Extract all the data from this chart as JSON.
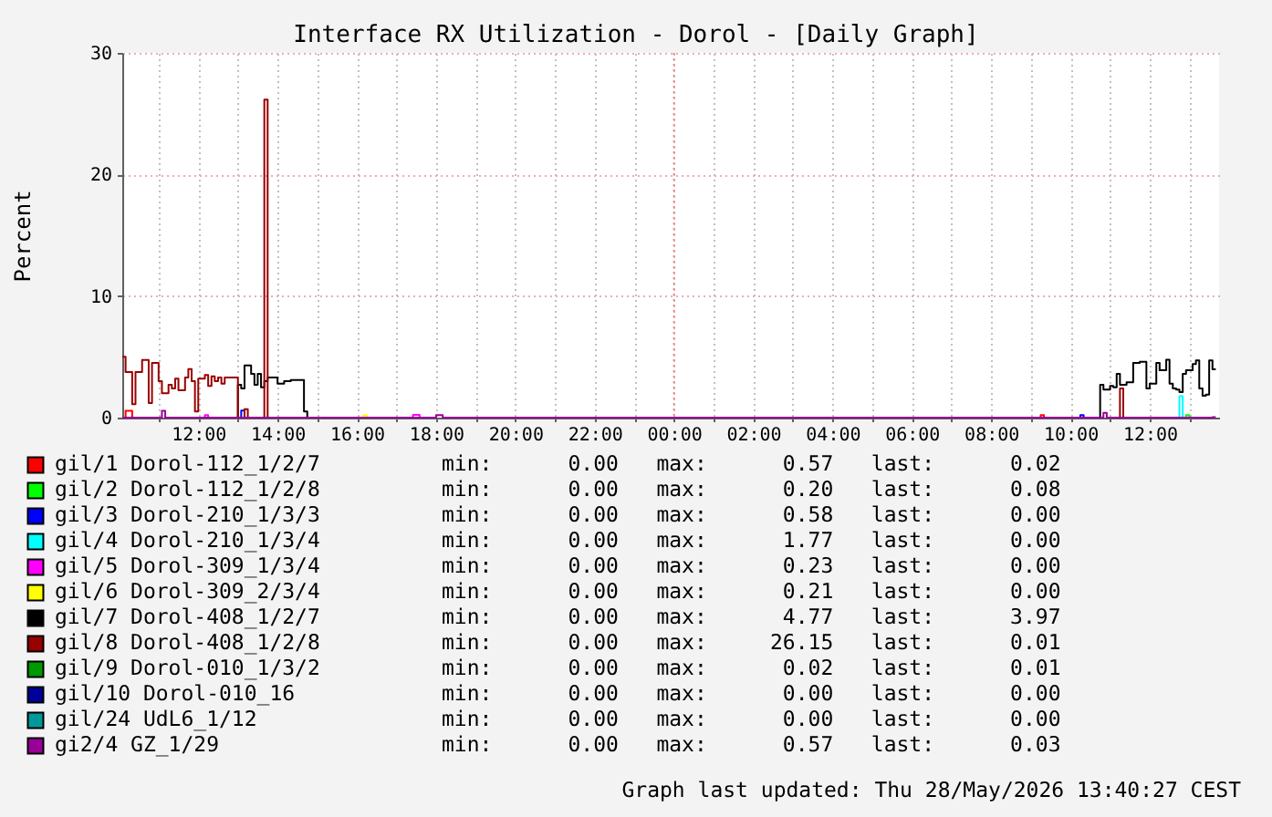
{
  "chart_data": {
    "type": "step",
    "title": "Interface RX Utilization - Dorol - [Daily Graph]",
    "ylabel": "Percent",
    "xlim": [
      "2026-05-27T10:05",
      "2026-05-28T13:45"
    ],
    "xticks": [
      {
        "value": "2026-05-27T11:00",
        "label": null
      },
      {
        "value": "2026-05-27T12:00",
        "label": "12:00"
      },
      {
        "value": "2026-05-27T13:00",
        "label": null
      },
      {
        "value": "2026-05-27T14:00",
        "label": "14:00"
      },
      {
        "value": "2026-05-27T15:00",
        "label": null
      },
      {
        "value": "2026-05-27T16:00",
        "label": "16:00"
      },
      {
        "value": "2026-05-27T17:00",
        "label": null
      },
      {
        "value": "2026-05-27T18:00",
        "label": "18:00"
      },
      {
        "value": "2026-05-27T19:00",
        "label": null
      },
      {
        "value": "2026-05-27T20:00",
        "label": "20:00"
      },
      {
        "value": "2026-05-27T21:00",
        "label": null
      },
      {
        "value": "2026-05-27T22:00",
        "label": "22:00"
      },
      {
        "value": "2026-05-27T23:00",
        "label": null
      },
      {
        "value": "2026-05-28T00:00",
        "label": "00:00"
      },
      {
        "value": "2026-05-28T01:00",
        "label": null
      },
      {
        "value": "2026-05-28T02:00",
        "label": "02:00"
      },
      {
        "value": "2026-05-28T03:00",
        "label": null
      },
      {
        "value": "2026-05-28T04:00",
        "label": "04:00"
      },
      {
        "value": "2026-05-28T05:00",
        "label": null
      },
      {
        "value": "2026-05-28T06:00",
        "label": "06:00"
      },
      {
        "value": "2026-05-28T07:00",
        "label": null
      },
      {
        "value": "2026-05-28T08:00",
        "label": "08:00"
      },
      {
        "value": "2026-05-28T09:00",
        "label": null
      },
      {
        "value": "2026-05-28T10:00",
        "label": "10:00"
      },
      {
        "value": "2026-05-28T11:00",
        "label": null
      },
      {
        "value": "2026-05-28T12:00",
        "label": "12:00"
      },
      {
        "value": "2026-05-28T13:00",
        "label": null
      }
    ],
    "ylim": [
      0,
      30
    ],
    "yticks": [
      0,
      10,
      20,
      30
    ],
    "grid": true,
    "legend": "bottom",
    "ref_lines": [
      {
        "axis": "x",
        "value": "2026-05-28T00:00",
        "color": "#ff8080",
        "line_style": "dotted"
      }
    ],
    "series": [
      {
        "name": "gil/1 Dorol-112_1/2/7",
        "color": "#ff0000",
        "x": [
          "2026-05-27T10:05",
          "2026-05-27T10:10",
          "2026-05-27T10:20",
          "2026-05-27T10:25",
          "2026-05-28T09:10",
          "2026-05-28T09:15",
          "2026-05-28T09:20"
        ],
        "values": [
          0,
          0.57,
          0,
          null,
          0,
          0.2,
          0
        ]
      },
      {
        "name": "gil/2 Dorol-112_1/2/8",
        "color": "#00ff00",
        "x": [
          "2026-05-28T12:50",
          "2026-05-28T12:55",
          "2026-05-28T13:00"
        ],
        "values": [
          0,
          0.2,
          0
        ]
      },
      {
        "name": "gil/3 Dorol-210_1/3/3",
        "color": "#0000ff",
        "x": [
          "2026-05-27T13:00",
          "2026-05-27T13:05",
          "2026-05-27T13:10",
          "2026-05-27T13:15",
          "2026-05-28T10:10",
          "2026-05-28T10:15",
          "2026-05-28T10:20"
        ],
        "values": [
          0,
          0.58,
          0,
          null,
          0,
          0.2,
          0
        ]
      },
      {
        "name": "gil/4 Dorol-210_1/3/4",
        "color": "#00ffff",
        "x": [
          "2026-05-28T12:40",
          "2026-05-28T12:45",
          "2026-05-28T12:50"
        ],
        "values": [
          0,
          1.77,
          0
        ]
      },
      {
        "name": "gil/5 Dorol-309_1/3/4",
        "color": "#ff00ff",
        "x": [
          "2026-05-27T12:05",
          "2026-05-27T12:10",
          "2026-05-27T12:15",
          "2026-05-27T12:20",
          "2026-05-27T17:20",
          "2026-05-27T17:25",
          "2026-05-27T17:35"
        ],
        "values": [
          0,
          0.2,
          0,
          null,
          0,
          0.23,
          0
        ]
      },
      {
        "name": "gil/6 Dorol-309_2/3/4",
        "color": "#ffff00",
        "x": [
          "2026-05-27T16:05",
          "2026-05-27T16:10",
          "2026-05-27T16:15"
        ],
        "values": [
          0,
          0.21,
          0
        ]
      },
      {
        "name": "gil/7 Dorol-408_1/2/7",
        "color": "#000000",
        "x": [
          "2026-05-27T12:55",
          "2026-05-27T13:00",
          "2026-05-27T13:05",
          "2026-05-27T13:10",
          "2026-05-27T13:15",
          "2026-05-27T13:20",
          "2026-05-27T13:25",
          "2026-05-27T13:30",
          "2026-05-27T13:35",
          "2026-05-27T13:40",
          "2026-05-27T13:45",
          "2026-05-27T13:50",
          "2026-05-27T13:55",
          "2026-05-27T14:00",
          "2026-05-27T14:05",
          "2026-05-27T14:10",
          "2026-05-27T14:15",
          "2026-05-27T14:20",
          "2026-05-27T14:25",
          "2026-05-27T14:30",
          "2026-05-27T14:35",
          "2026-05-27T14:40",
          "2026-05-27T14:45",
          "2026-05-27T14:50",
          "2026-05-28T10:40",
          "2026-05-28T10:45",
          "2026-05-28T10:50",
          "2026-05-28T10:55",
          "2026-05-28T11:00",
          "2026-05-28T11:05",
          "2026-05-28T11:10",
          "2026-05-28T11:15",
          "2026-05-28T11:20",
          "2026-05-28T11:25",
          "2026-05-28T11:30",
          "2026-05-28T11:35",
          "2026-05-28T11:40",
          "2026-05-28T11:45",
          "2026-05-28T11:50",
          "2026-05-28T11:55",
          "2026-05-28T12:00",
          "2026-05-28T12:05",
          "2026-05-28T12:10",
          "2026-05-28T12:15",
          "2026-05-28T12:20",
          "2026-05-28T12:25",
          "2026-05-28T12:30",
          "2026-05-28T12:35",
          "2026-05-28T12:40",
          "2026-05-28T12:45",
          "2026-05-28T12:50",
          "2026-05-28T12:55",
          "2026-05-28T13:00",
          "2026-05-28T13:05",
          "2026-05-28T13:10",
          "2026-05-28T13:15",
          "2026-05-28T13:20",
          "2026-05-28T13:25",
          "2026-05-28T13:30",
          "2026-05-28T13:35",
          "2026-05-28T13:40"
        ],
        "values": [
          0,
          2.7,
          2.4,
          4.3,
          4.3,
          3.6,
          2.7,
          3.6,
          2.5,
          3.0,
          3.3,
          3.3,
          3.3,
          2.8,
          2.8,
          3.0,
          3.0,
          3.1,
          3.1,
          3.1,
          3.1,
          0.5,
          0,
          null,
          0,
          2.7,
          2.3,
          2.3,
          2.6,
          2.5,
          3.6,
          2.7,
          2.7,
          2.9,
          2.9,
          4.5,
          4.5,
          4.6,
          4.6,
          2.4,
          2.8,
          2.8,
          4.5,
          3.9,
          3.9,
          4.77,
          2.8,
          2.4,
          2.3,
          2.1,
          3.6,
          3.9,
          3.9,
          4.4,
          4.7,
          2.4,
          1.8,
          1.9,
          4.7,
          3.97,
          3.97
        ]
      },
      {
        "name": "gil/8 Dorol-408_1/2/8",
        "color": "#990000",
        "x": [
          "2026-05-27T10:05",
          "2026-05-27T10:10",
          "2026-05-27T10:15",
          "2026-05-27T10:20",
          "2026-05-27T10:25",
          "2026-05-27T10:30",
          "2026-05-27T10:35",
          "2026-05-27T10:40",
          "2026-05-27T10:45",
          "2026-05-27T10:50",
          "2026-05-27T10:55",
          "2026-05-27T11:00",
          "2026-05-27T11:05",
          "2026-05-27T11:10",
          "2026-05-27T11:15",
          "2026-05-27T11:20",
          "2026-05-27T11:25",
          "2026-05-27T11:30",
          "2026-05-27T11:35",
          "2026-05-27T11:40",
          "2026-05-27T11:45",
          "2026-05-27T11:50",
          "2026-05-27T11:55",
          "2026-05-27T12:00",
          "2026-05-27T12:05",
          "2026-05-27T12:10",
          "2026-05-27T12:15",
          "2026-05-27T12:20",
          "2026-05-27T12:25",
          "2026-05-27T12:30",
          "2026-05-27T12:35",
          "2026-05-27T12:40",
          "2026-05-27T12:45",
          "2026-05-27T12:50",
          "2026-05-27T12:55",
          "2026-05-27T13:00",
          "2026-05-27T13:05",
          "2026-05-27T13:10",
          "2026-05-27T13:15",
          "2026-05-27T13:20",
          "2026-05-27T13:35",
          "2026-05-27T13:40",
          "2026-05-27T13:45",
          "2026-05-27T13:50",
          "2026-05-28T11:10",
          "2026-05-28T11:15",
          "2026-05-28T11:20"
        ],
        "values": [
          5.0,
          3.75,
          3.75,
          1.1,
          3.75,
          3.75,
          4.75,
          4.75,
          1.2,
          4.5,
          4.5,
          3.0,
          2.0,
          2.0,
          2.7,
          2.4,
          3.2,
          2.25,
          2.25,
          3.3,
          4.0,
          3.0,
          0.5,
          3.2,
          3.2,
          3.5,
          2.6,
          3.4,
          3.0,
          3.3,
          2.8,
          3.3,
          3.3,
          3.3,
          3.3,
          0,
          0,
          0.7,
          0,
          null,
          0,
          26.15,
          0,
          null,
          0,
          2.4,
          0
        ]
      },
      {
        "name": "gil/9 Dorol-010_1/3/2",
        "color": "#009900"
      },
      {
        "name": "gil/10 Dorol-010_16",
        "color": "#000099"
      },
      {
        "name": "gil/24 UdL6_1/12",
        "color": "#009999"
      },
      {
        "name": "gi2/4 GZ_1/29",
        "color": "#990099",
        "x": [
          "2026-05-27T10:05",
          "2026-05-27T11:05",
          "2026-05-27T11:10",
          "2026-05-27T18:00",
          "2026-05-27T18:10",
          "2026-05-28T10:50",
          "2026-05-28T10:55",
          "2026-05-28T13:35",
          "2026-05-28T13:40"
        ],
        "values": [
          0,
          0.57,
          0,
          0.2,
          0,
          0.4,
          0,
          0.03,
          0.03
        ]
      }
    ],
    "annotations": [
      "min:      0.00   max:      0.57   last:      0.02",
      "min:      0.00   max:      0.20   last:      0.08",
      "min:      0.00   max:      0.58   last:      0.00",
      "min:      0.00   max:      1.77   last:      0.00",
      "min:      0.00   max:      0.23   last:      0.00",
      "min:      0.00   max:      0.21   last:      0.00",
      "min:      0.00   max:      4.77   last:      3.97",
      "min:      0.00   max:     26.15   last:      0.01",
      "min:      0.00   max:      0.02   last:      0.01",
      "min:      0.00   max:      0.00   last:      0.00",
      "min:      0.00   max:      0.00   last:      0.00",
      "min:      0.00   max:      0.57   last:      0.03",
      "Graph last updated: Thu 28/May/2026 13:40:27 CEST"
    ]
  }
}
